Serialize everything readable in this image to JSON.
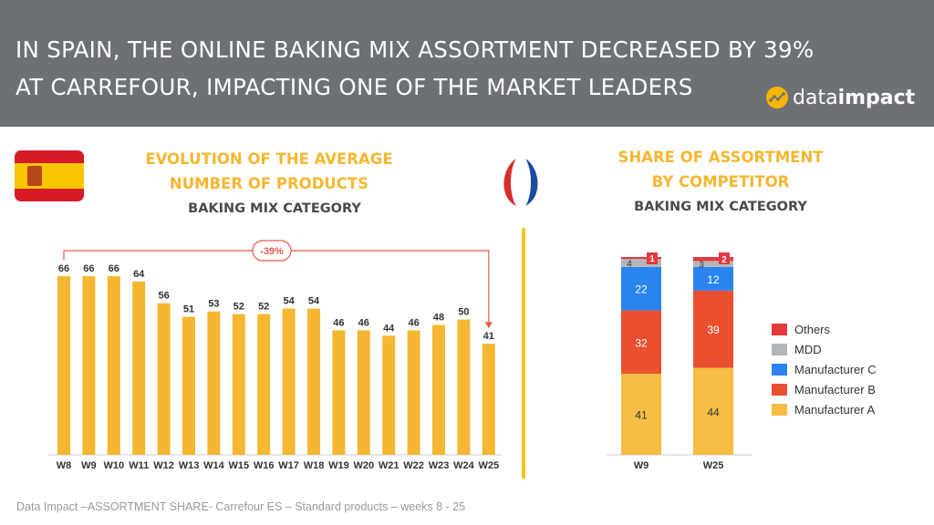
{
  "header": {
    "line1": "IN SPAIN, THE ONLINE BAKING MIX ASSORTMENT DECREASED BY 39%",
    "line2": "AT CARREFOUR, IMPACTING ONE OF THE MARKET LEADERS",
    "brand_part1": "data",
    "brand_part2": "impact"
  },
  "colors": {
    "header_bg": "#6d7175",
    "accent_yellow": "#f5b731",
    "others": "#e6383e",
    "mdd": "#b3b6b8",
    "manufacturer_c": "#2b84ee",
    "manufacturer_b": "#ea5030",
    "manufacturer_a": "#f7bd45",
    "callout_red": "#e35a4f"
  },
  "left_panel": {
    "title_line1": "EVOLUTION OF THE AVERAGE",
    "title_line2": "NUMBER OF PRODUCTS",
    "subtitle": "BAKING MIX CATEGORY",
    "callout": "-39%"
  },
  "right_panel": {
    "title_line1": "SHARE OF ASSORTMENT",
    "title_line2": "BY COMPETITOR",
    "subtitle": "BAKING MIX CATEGORY"
  },
  "footer": "Data Impact –ASSORTMENT SHARE-  Carrefour ES – Standard products – weeks 8 - 25",
  "chart_data": [
    {
      "type": "bar",
      "categories": [
        "W8",
        "W9",
        "W10",
        "W11",
        "W12",
        "W13",
        "W14",
        "W15",
        "W16",
        "W17",
        "W18",
        "W19",
        "W20",
        "W21",
        "W22",
        "W23",
        "W24",
        "W25"
      ],
      "values": [
        66,
        66,
        66,
        64,
        56,
        51,
        53,
        52,
        52,
        54,
        54,
        46,
        46,
        44,
        46,
        48,
        50,
        41
      ],
      "title": "EVOLUTION OF THE AVERAGE NUMBER OF PRODUCTS",
      "subtitle": "BAKING MIX CATEGORY",
      "annotations": [
        "-39%"
      ],
      "ylim": [
        0,
        66
      ]
    },
    {
      "type": "bar",
      "stacked": true,
      "categories": [
        "W9",
        "W25"
      ],
      "series": [
        {
          "name": "Manufacturer A",
          "values": [
            41,
            44
          ]
        },
        {
          "name": "Manufacturer B",
          "values": [
            32,
            39
          ]
        },
        {
          "name": "Manufacturer C",
          "values": [
            22,
            12
          ]
        },
        {
          "name": "MDD",
          "values": [
            4,
            3
          ]
        },
        {
          "name": "Others",
          "values": [
            1,
            2
          ]
        }
      ],
      "title": "SHARE OF ASSORTMENT BY COMPETITOR",
      "subtitle": "BAKING MIX CATEGORY",
      "ylim": [
        0,
        100
      ],
      "legend": "right"
    }
  ]
}
